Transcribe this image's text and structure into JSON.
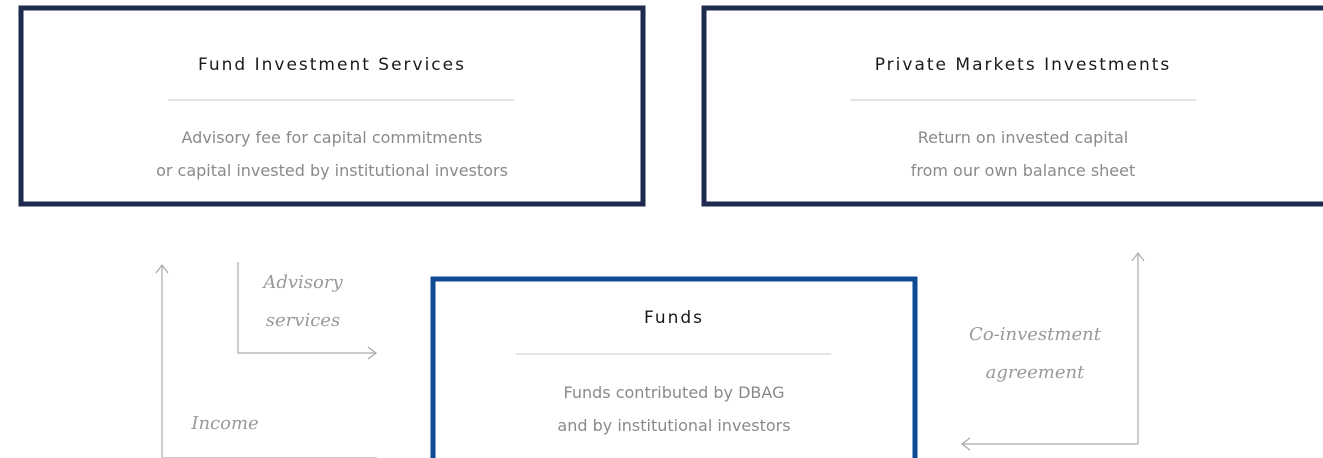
{
  "nodes": [
    {
      "title": "Fund Investment Services",
      "lines": [
        "Advisory fee for capital commitments",
        "or capital invested by institutional investors"
      ]
    },
    {
      "title": "Private Markets Investments",
      "lines": [
        "Return on invested capital",
        "from our own balance sheet"
      ]
    },
    {
      "title": "Funds",
      "lines": [
        "Funds contributed by DBAG",
        "and by institutional investors"
      ]
    }
  ],
  "edges": [
    {
      "label": [
        "Advisory",
        "services"
      ]
    },
    {
      "label": [
        "Income"
      ]
    },
    {
      "label": [
        "Co-investment",
        "agreement"
      ]
    }
  ]
}
